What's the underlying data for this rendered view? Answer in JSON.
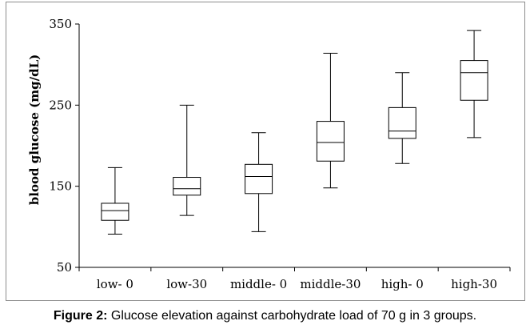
{
  "chart_data": {
    "type": "box",
    "ylabel": "blood glucose (mg/dL)",
    "xlabel": "",
    "ylim": [
      50,
      350
    ],
    "yticks": [
      50,
      150,
      250,
      350
    ],
    "categories": [
      "low- 0",
      "low-30",
      "middle- 0",
      "middle-30",
      "high- 0",
      "high-30"
    ],
    "boxes": [
      {
        "min": 91,
        "q1": 108,
        "median": 120,
        "q3": 129,
        "max": 173
      },
      {
        "min": 114,
        "q1": 139,
        "median": 147,
        "q3": 161,
        "max": 250
      },
      {
        "min": 94,
        "q1": 141,
        "median": 162,
        "q3": 177,
        "max": 216
      },
      {
        "min": 148,
        "q1": 181,
        "median": 204,
        "q3": 230,
        "max": 314
      },
      {
        "min": 178,
        "q1": 209,
        "median": 218,
        "q3": 247,
        "max": 290
      },
      {
        "min": 210,
        "q1": 256,
        "median": 290,
        "q3": 305,
        "max": 342
      }
    ],
    "grid": false,
    "legend": "none"
  },
  "caption": {
    "label": "Figure 2:",
    "text": " Glucose elevation against carbohydrate load of 70 g in 3 groups."
  }
}
